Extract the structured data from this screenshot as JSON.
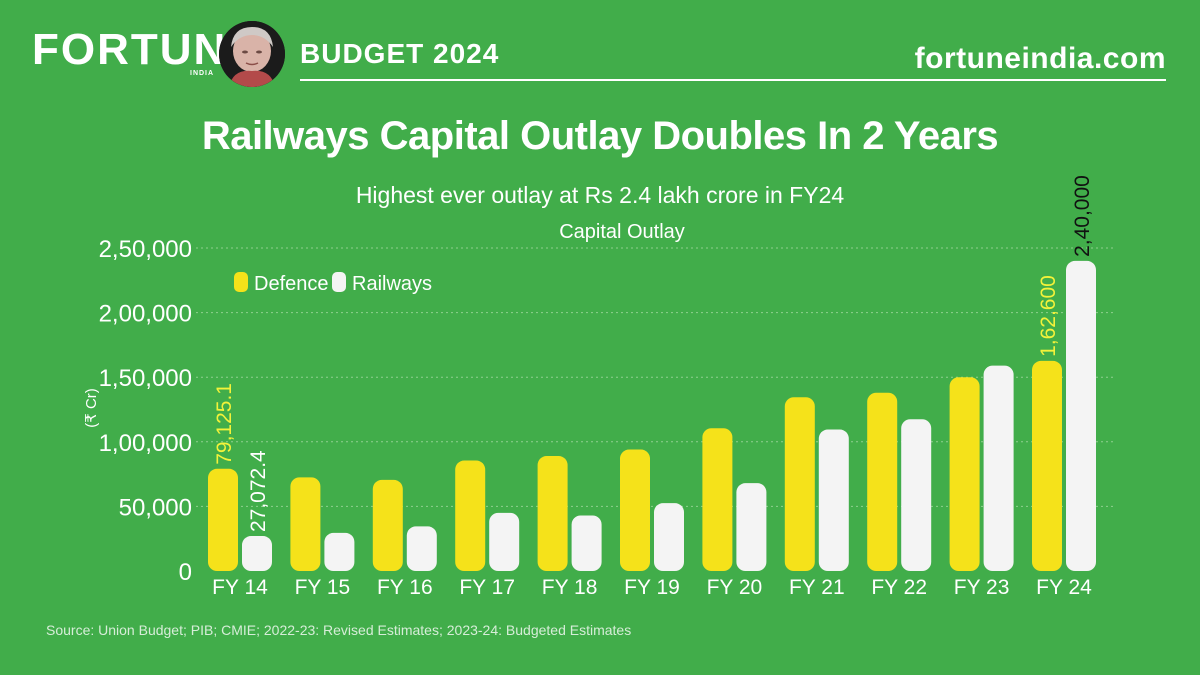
{
  "header": {
    "brand": "FORTUNE",
    "brand_sub": "INDIA",
    "section": "BUDGET 2024",
    "site": "fortuneindia.com"
  },
  "colors": {
    "background": "#41ad4a",
    "defence": "#f5e21a",
    "railways": "#f4f4f4",
    "defence_label": "#f3f23a",
    "railways_label": "#111111"
  },
  "chart_data": {
    "type": "bar",
    "title": "Railways Capital Outlay Doubles In 2 Years",
    "subtitle": "Highest ever outlay at Rs 2.4 lakh crore in FY24",
    "chart_caption": "Capital Outlay",
    "ylabel": "(₹ Cr)",
    "xlabel": "",
    "ylim": [
      0,
      250000
    ],
    "yticks": [
      0,
      50000,
      100000,
      150000,
      200000,
      250000
    ],
    "ytick_labels": [
      "0",
      "50,000",
      "1,00,000",
      "1,50,000",
      "2,00,000",
      "2,50,000"
    ],
    "grid": true,
    "legend_position": "top-left",
    "categories": [
      "FY 14",
      "FY 15",
      "FY 16",
      "FY 17",
      "FY 18",
      "FY 19",
      "FY 20",
      "FY 21",
      "FY 22",
      "FY 23",
      "FY 24"
    ],
    "series": [
      {
        "name": "Defence",
        "values": [
          79125.1,
          72500,
          70500,
          85500,
          89000,
          94000,
          110500,
          134500,
          138000,
          150000,
          162600
        ]
      },
      {
        "name": "Railways",
        "values": [
          27072.4,
          29500,
          34500,
          45000,
          43000,
          52500,
          68000,
          109500,
          117500,
          159000,
          240000
        ]
      }
    ],
    "data_labels": [
      {
        "series": 0,
        "index": 0,
        "text": "79,125.1"
      },
      {
        "series": 1,
        "index": 0,
        "text": "27,072.4"
      },
      {
        "series": 0,
        "index": 10,
        "text": "1,62,600"
      },
      {
        "series": 1,
        "index": 10,
        "text": "2,40,000"
      }
    ]
  },
  "footer": {
    "source": "Source: Union Budget; PIB; CMIE; 2022-23: Revised Estimates; 2023-24: Budgeted Estimates"
  }
}
